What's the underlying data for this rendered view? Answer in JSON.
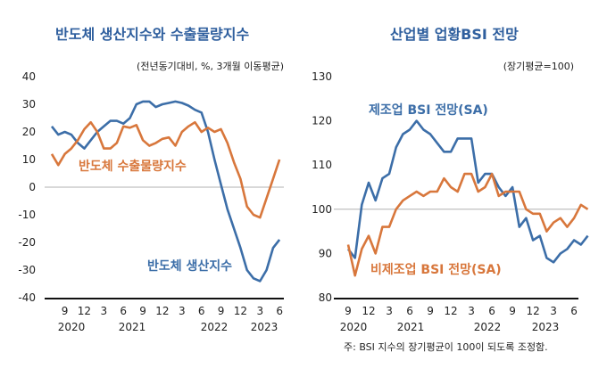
{
  "colors": {
    "blue": "#3c6ea8",
    "orange": "#d8773c",
    "title": "#2f5f9e",
    "zero_line": "#b0b0b0",
    "axis": "#111111"
  },
  "chart_data": [
    {
      "type": "line",
      "title": "반도체 생산지수와 수출물량지수",
      "subtitle": "(전년동기대비, %, 3개월 이동평균)",
      "ylim": [
        -40,
        40
      ],
      "yticks": [
        "40",
        "30",
        "20",
        "10",
        "0",
        "-10",
        "-20",
        "-30",
        "-40"
      ],
      "xtick_labels": [
        "9",
        "12",
        "3",
        "6",
        "9",
        "12",
        "3",
        "6",
        "9",
        "12",
        "3",
        "6"
      ],
      "year_labels": [
        "2020",
        "2021",
        "2022",
        "2023"
      ],
      "x_range": [
        "2020-07",
        "2023-06"
      ],
      "reference_line": 0,
      "series": [
        {
          "name": "반도체 생산지수",
          "color": "blue",
          "values": [
            22,
            19,
            20,
            19,
            16,
            14,
            17,
            20,
            22,
            24,
            24,
            23,
            25,
            30,
            31,
            31,
            29,
            30,
            30.5,
            31,
            30.5,
            29.5,
            28,
            27,
            20,
            10,
            1,
            -8,
            -15,
            -22,
            -30,
            -33,
            -34,
            -30,
            -22,
            -19
          ]
        },
        {
          "name": "반도체 수출물량지수",
          "color": "orange",
          "values": [
            12,
            8,
            12,
            14,
            17,
            21,
            23.5,
            20,
            14,
            14,
            16,
            22,
            21.5,
            22.5,
            17,
            15,
            16,
            17.5,
            18,
            15,
            20,
            22,
            23.5,
            20,
            21.5,
            20,
            21,
            16,
            9,
            3,
            -7,
            -10,
            -11,
            -4,
            3,
            10
          ]
        }
      ]
    },
    {
      "type": "line",
      "title": "산업별 업황BSI 전망",
      "subtitle": "(장기평균=100)",
      "ylim": [
        80,
        130
      ],
      "yticks": [
        "130",
        "120",
        "110",
        "100",
        "90",
        "80"
      ],
      "xtick_labels": [
        "9",
        "12",
        "3",
        "6",
        "9",
        "12",
        "3",
        "6",
        "9",
        "12",
        "3",
        "6"
      ],
      "year_labels": [
        "2020",
        "2021",
        "2022",
        "2023"
      ],
      "x_range": [
        "2020-09",
        "2023-08"
      ],
      "reference_line": 100,
      "note": "주: BSI 지수의 장기평균이 100이 되도록 조정함.",
      "series": [
        {
          "name": "제조업 BSI 전망(SA)",
          "color": "blue",
          "values": [
            91,
            89,
            101,
            106,
            102,
            107,
            108,
            114,
            117,
            118,
            120,
            118,
            117,
            115,
            113,
            113,
            116,
            116,
            116,
            106,
            108,
            108,
            105,
            103,
            105,
            96,
            98,
            93,
            94,
            89,
            88,
            90,
            91,
            93,
            92,
            94
          ]
        },
        {
          "name": "비제조업 BSI 전망(SA)",
          "color": "orange",
          "values": [
            92,
            85,
            91,
            94,
            90,
            96,
            96,
            100,
            102,
            103,
            104,
            103,
            104,
            104,
            107,
            105,
            104,
            108,
            108,
            104,
            105,
            108,
            103,
            104,
            104,
            104,
            100,
            99,
            99,
            95,
            97,
            98,
            96,
            98,
            101,
            100
          ]
        }
      ]
    }
  ]
}
